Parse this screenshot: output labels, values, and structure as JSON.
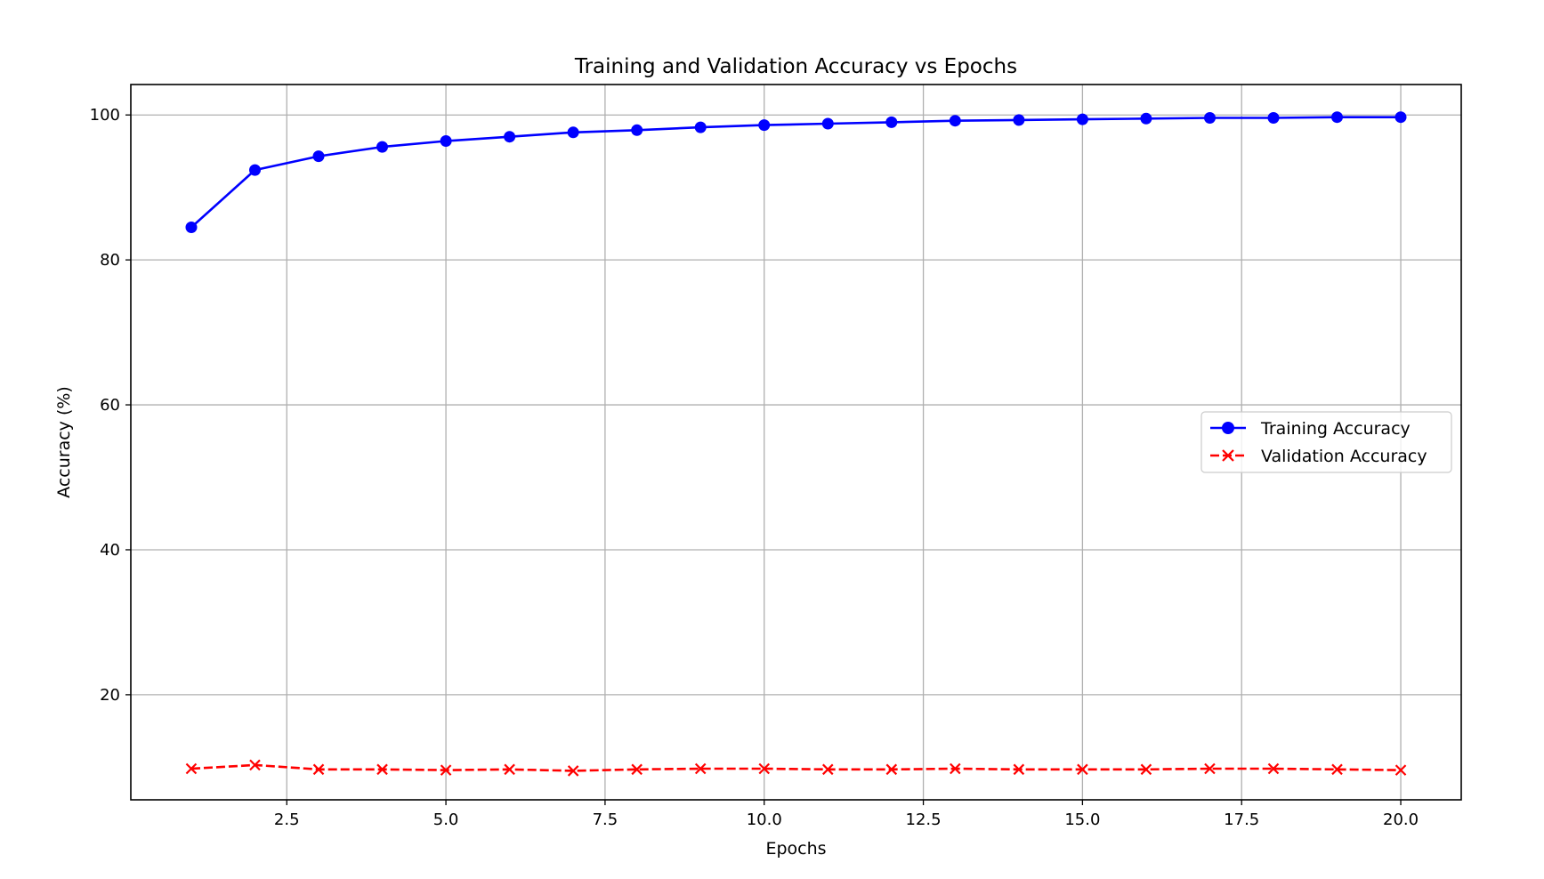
{
  "chart_data": {
    "type": "line",
    "title": "Training and Validation Accuracy vs Epochs",
    "xlabel": "Epochs",
    "ylabel": "Accuracy (%)",
    "xlim": [
      0.05,
      20.95
    ],
    "ylim": [
      5.5,
      104.2
    ],
    "xticks": [
      2.5,
      5.0,
      7.5,
      10.0,
      12.5,
      15.0,
      17.5,
      20.0
    ],
    "xtick_labels": [
      "2.5",
      "5.0",
      "7.5",
      "10.0",
      "12.5",
      "15.0",
      "17.5",
      "20.0"
    ],
    "yticks": [
      20,
      40,
      60,
      80,
      100
    ],
    "ytick_labels": [
      "20",
      "40",
      "60",
      "80",
      "100"
    ],
    "grid": true,
    "legend_position": "center-right",
    "x": [
      1,
      2,
      3,
      4,
      5,
      6,
      7,
      8,
      9,
      10,
      11,
      12,
      13,
      14,
      15,
      16,
      17,
      18,
      19,
      20
    ],
    "series": [
      {
        "name": "Training Accuracy",
        "color": "#0000ff",
        "line_style": "solid",
        "marker": "circle",
        "values": [
          84.5,
          92.4,
          94.3,
          95.6,
          96.4,
          97.0,
          97.6,
          97.9,
          98.3,
          98.6,
          98.8,
          99.0,
          99.2,
          99.3,
          99.4,
          99.5,
          99.6,
          99.6,
          99.7,
          99.7
        ]
      },
      {
        "name": "Validation Accuracy",
        "color": "#ff0000",
        "line_style": "dashed",
        "marker": "x",
        "values": [
          9.8,
          10.3,
          9.7,
          9.7,
          9.6,
          9.7,
          9.5,
          9.7,
          9.8,
          9.8,
          9.7,
          9.7,
          9.8,
          9.7,
          9.7,
          9.7,
          9.8,
          9.8,
          9.7,
          9.6
        ]
      }
    ]
  }
}
